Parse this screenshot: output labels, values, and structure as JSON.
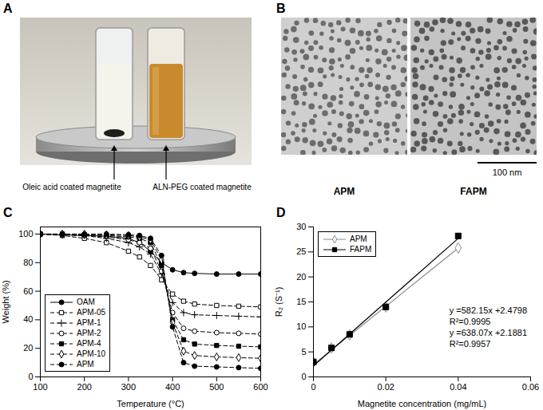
{
  "panel_labels": [
    "A",
    "B",
    "C",
    "D"
  ],
  "photo": {
    "labels": [
      "Oleic acid coated magnetite",
      "ALN-PEG coated magnetite"
    ]
  },
  "micrographs": {
    "images": [
      "APM",
      "FAPM"
    ],
    "scale_bar": "100 nm"
  },
  "chart_data": [
    {
      "type": "line",
      "x_label": "Temperature (°C)",
      "y_label": "Weight (%)",
      "xlim": [
        100,
        600
      ],
      "xticks": [
        100,
        200,
        300,
        400,
        500,
        600
      ],
      "ylim": [
        0,
        105
      ],
      "yticks": [
        0,
        20,
        40,
        60,
        80,
        100
      ],
      "legend": "bottom-left",
      "x": [
        100,
        150,
        200,
        250,
        300,
        325,
        350,
        375,
        400,
        425,
        450,
        500,
        550,
        600
      ],
      "series": [
        {
          "name": "OAM",
          "color": "#000000",
          "marker": "filled-circle",
          "line_style": "solid",
          "values": [
            100,
            99.5,
            99,
            98.5,
            97,
            94,
            88,
            80,
            75,
            73,
            72.5,
            72,
            72,
            72
          ]
        },
        {
          "name": "APM-05",
          "color": "#000000",
          "marker": "open-square",
          "line_style": "dashed",
          "values": [
            100,
            99,
            97,
            94,
            88,
            84,
            78,
            68,
            58,
            53,
            51,
            50,
            49.5,
            49
          ]
        },
        {
          "name": "APM-1",
          "color": "#000000",
          "marker": "plus",
          "line_style": "dashed",
          "values": [
            100,
            99.5,
            99,
            97,
            94,
            91,
            86,
            72,
            52,
            45,
            43.5,
            43,
            42.5,
            42
          ]
        },
        {
          "name": "APM-2",
          "color": "#000000",
          "marker": "open-circle",
          "line_style": "dashed",
          "values": [
            100,
            99.5,
            99,
            98,
            96,
            94,
            90,
            74,
            45,
            34,
            32,
            31,
            30.5,
            30
          ]
        },
        {
          "name": "APM-4",
          "color": "#000000",
          "marker": "filled-square",
          "line_style": "dashed",
          "values": [
            100,
            100,
            99.5,
            99,
            98,
            97,
            94,
            78,
            40,
            26,
            23,
            22,
            21.5,
            21
          ]
        },
        {
          "name": "APM-10",
          "color": "#000000",
          "marker": "open-diamond",
          "line_style": "dashed",
          "values": [
            100,
            100,
            100,
            99.5,
            99,
            98,
            96,
            82,
            38,
            18,
            15,
            14,
            13.5,
            13
          ]
        },
        {
          "name": "APM",
          "color": "#000000",
          "marker": "filled-circle",
          "line_style": "dashed",
          "values": [
            100,
            100,
            100,
            100,
            99.5,
            99,
            97,
            85,
            35,
            10,
            7.5,
            7,
            6.5,
            6
          ]
        }
      ]
    },
    {
      "type": "scatter",
      "x_label": "Magnetite concentration (mg/mL)",
      "y_label": "R₂ (S⁻¹)",
      "xlim": [
        0,
        0.06
      ],
      "xticks": [
        0,
        0.02,
        0.04,
        0.06
      ],
      "ylim": [
        0,
        30
      ],
      "yticks": [
        0,
        5,
        10,
        15,
        20,
        25,
        30
      ],
      "legend": "top-left",
      "x": [
        0,
        0.005,
        0.01,
        0.02,
        0.04
      ],
      "series": [
        {
          "name": "APM",
          "color": "#8c8c8c",
          "marker": "open-diamond",
          "line_style": "solid",
          "values": [
            3,
            5.8,
            8.4,
            14,
            25.8
          ],
          "fit": {
            "slope": 582.15,
            "intercept": 2.4798
          }
        },
        {
          "name": "FAPM",
          "color": "#000000",
          "marker": "filled-square",
          "line_style": "solid",
          "values": [
            3,
            5.8,
            8.5,
            14,
            28.2
          ],
          "fit": {
            "slope": 638.07,
            "intercept": 2.1881
          }
        }
      ],
      "annotations": [
        "y =582.15x +2.4798",
        "R²=0.9995",
        "y =638.07x +2.1881",
        "R²=0.9957"
      ]
    }
  ]
}
